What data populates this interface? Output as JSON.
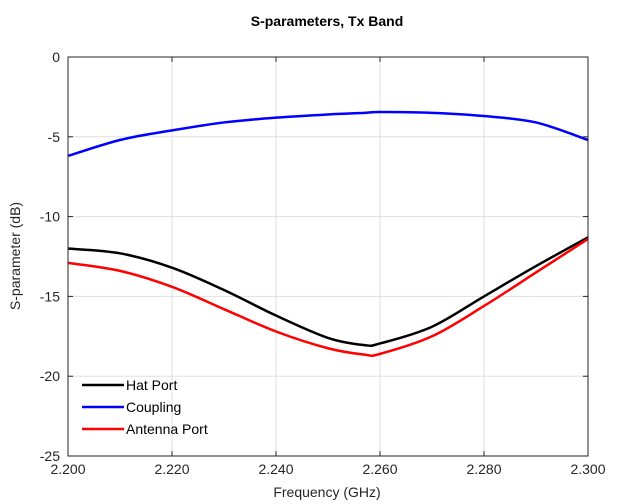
{
  "chart_data": {
    "type": "line",
    "title": "S-parameters, Tx Band",
    "xlabel": "Frequency (GHz)",
    "ylabel": "S-parameter (dB)",
    "xlim": [
      2.2,
      2.3
    ],
    "ylim": [
      -25,
      0
    ],
    "xticks": [
      2.2,
      2.22,
      2.24,
      2.26,
      2.28,
      2.3
    ],
    "xtick_labels": [
      "2.200",
      "2.220",
      "2.240",
      "2.260",
      "2.280",
      "2.300"
    ],
    "yticks": [
      0,
      -5,
      -10,
      -15,
      -20,
      -25
    ],
    "ytick_labels": [
      "0",
      "-5",
      "-10",
      "-15",
      "-20",
      "-25"
    ],
    "grid": true,
    "legend_position": "bottom-left",
    "x": [
      2.2,
      2.21,
      2.22,
      2.23,
      2.24,
      2.25,
      2.257,
      2.26,
      2.27,
      2.28,
      2.29,
      2.3
    ],
    "series": [
      {
        "name": "Hat Port",
        "color": "#000000",
        "values": [
          -12.0,
          -12.3,
          -13.2,
          -14.6,
          -16.2,
          -17.6,
          -18.05,
          -17.95,
          -16.9,
          -15.0,
          -13.1,
          -11.3
        ]
      },
      {
        "name": "Coupling",
        "color": "#0000ff",
        "values": [
          -6.2,
          -5.2,
          -4.6,
          -4.1,
          -3.8,
          -3.6,
          -3.5,
          -3.45,
          -3.5,
          -3.7,
          -4.1,
          -5.2
        ]
      },
      {
        "name": "Antenna Port",
        "color": "#ff0000",
        "values": [
          -12.9,
          -13.4,
          -14.4,
          -15.8,
          -17.2,
          -18.25,
          -18.65,
          -18.6,
          -17.5,
          -15.6,
          -13.5,
          -11.4
        ]
      }
    ]
  }
}
